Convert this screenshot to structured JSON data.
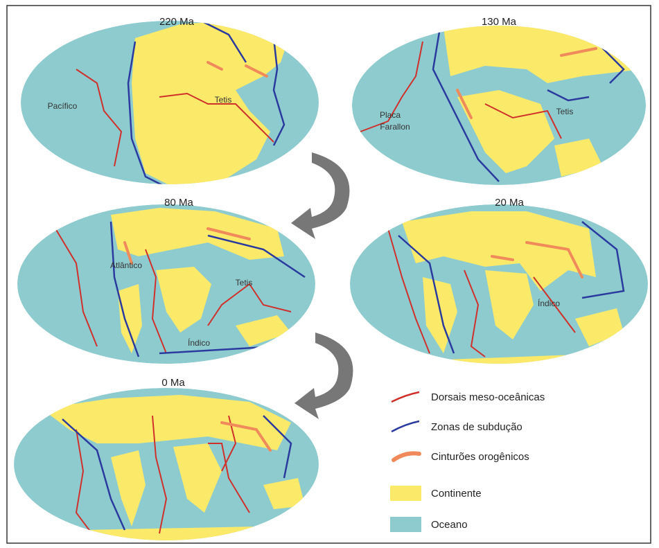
{
  "maps": [
    {
      "title": "220 Ma",
      "labels": [
        "Pacífico",
        "Tetis"
      ]
    },
    {
      "title": "130 Ma",
      "labels": [
        "Placa",
        "Farallon",
        "Tetis"
      ]
    },
    {
      "title": "80 Ma",
      "labels": [
        "Atlântico",
        "Tetis",
        "Índico"
      ]
    },
    {
      "title": "20 Ma",
      "labels": [
        "Índico"
      ]
    },
    {
      "title": "0 Ma",
      "labels": []
    }
  ],
  "legend": [
    "Dorsais meso-oceânicas",
    "Zonas de subdução",
    "Cinturões orogênicos",
    "Continente",
    "Oceano"
  ]
}
